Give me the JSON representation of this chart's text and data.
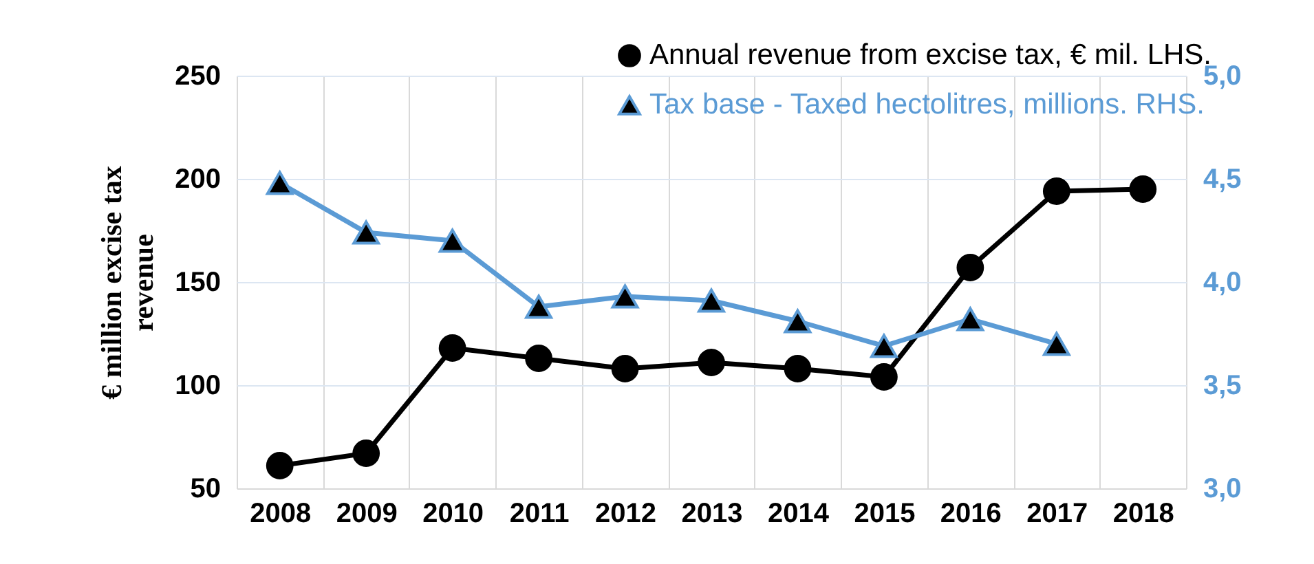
{
  "chart_data": {
    "type": "line",
    "ylabel": "€ million excise tax revenue",
    "categories": [
      "2008",
      "2009",
      "2010",
      "2011",
      "2012",
      "2013",
      "2014",
      "2015",
      "2016",
      "2017",
      "2018"
    ],
    "series": [
      {
        "name": "Annual revenue from excise tax,  € mil. LHS.",
        "color": "#000000",
        "marker": "circle",
        "values": [
          61,
          67,
          118,
          113,
          108,
          111,
          108,
          104,
          157,
          194,
          195
        ]
      },
      {
        "name": "Tax base - Taxed hectolitres, millions. RHS.",
        "color": "#5b9bd5",
        "marker": "triangle",
        "axis": "y2",
        "values": [
          4.48,
          4.24,
          4.2,
          3.88,
          3.93,
          3.91,
          3.81,
          3.69,
          3.82,
          3.7,
          null
        ]
      }
    ],
    "ylim": [
      50,
      250
    ],
    "yticks": [
      50,
      100,
      150,
      200,
      250
    ],
    "y2lim": [
      3.0,
      5.0
    ],
    "y2ticks": [
      {
        "value": 3.0,
        "label": "3,0"
      },
      {
        "value": 3.5,
        "label": "3,5"
      },
      {
        "value": 4.0,
        "label": "4,0"
      },
      {
        "value": 4.5,
        "label": "4,5"
      },
      {
        "value": 5.0,
        "label": "5,0"
      }
    ],
    "grid": true,
    "legend": "top right"
  }
}
